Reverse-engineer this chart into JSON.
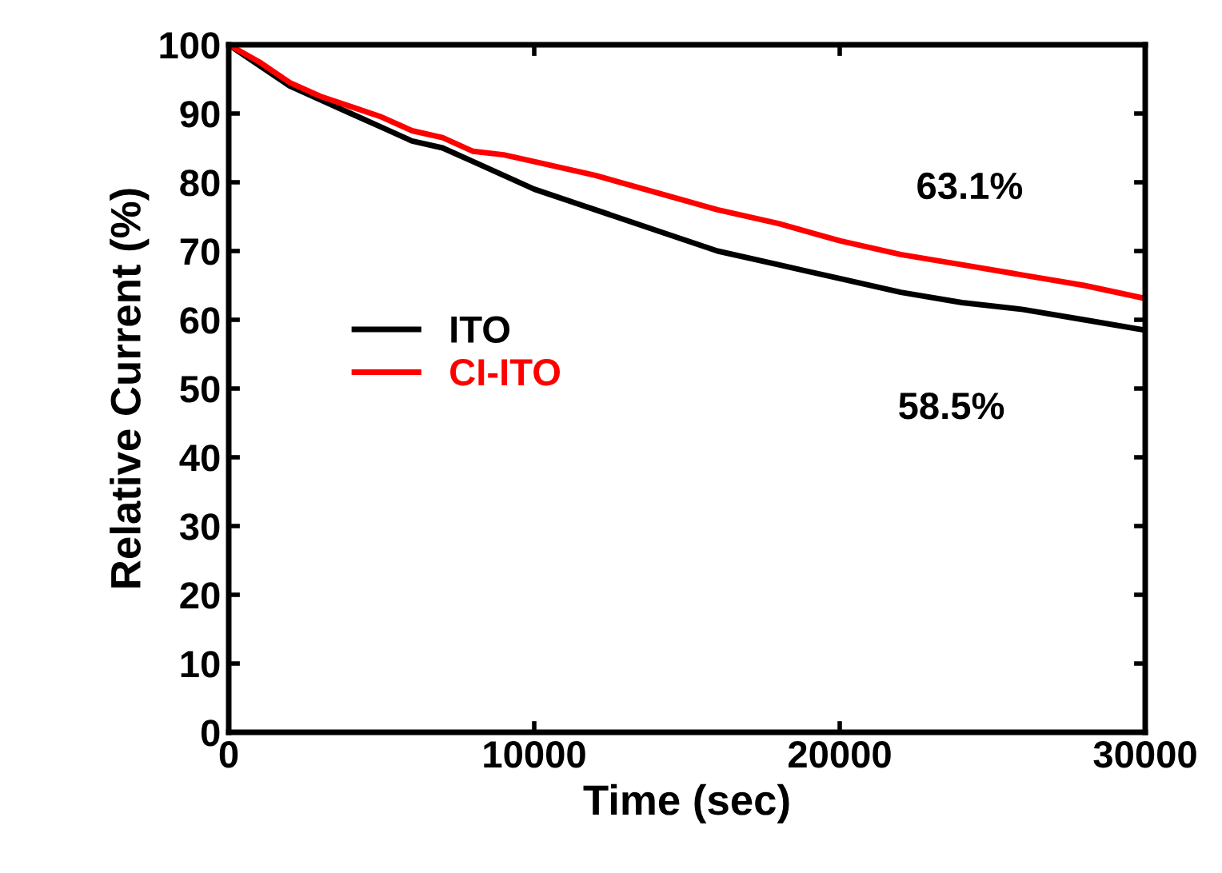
{
  "chart_data": {
    "type": "line",
    "xlabel": "Time (sec)",
    "ylabel": "Relative Current (%)",
    "xlim": [
      0,
      30000
    ],
    "ylim": [
      0,
      100
    ],
    "xticks": [
      0,
      10000,
      20000,
      30000
    ],
    "yticks": [
      0,
      10,
      20,
      30,
      40,
      50,
      60,
      70,
      80,
      90,
      100
    ],
    "grid": false,
    "legend": "left",
    "marker": "none",
    "line_style": "solid",
    "annotations": [
      "63.1%",
      "58.5%"
    ],
    "series": [
      {
        "name": "ITO",
        "color": "#000000",
        "x": [
          0,
          1000,
          2000,
          3000,
          4000,
          5000,
          6000,
          7000,
          8000,
          9000,
          10000,
          12000,
          14000,
          16000,
          18000,
          20000,
          22000,
          24000,
          26000,
          28000,
          30000
        ],
        "values": [
          100,
          97,
          94,
          92,
          90,
          88,
          86,
          85,
          83,
          81,
          79,
          76,
          73,
          70,
          68,
          66,
          64,
          62.5,
          61.5,
          60,
          58.5
        ]
      },
      {
        "name": "CI-ITO",
        "color": "#ff0000",
        "x": [
          0,
          1000,
          2000,
          3000,
          4000,
          5000,
          6000,
          7000,
          8000,
          9000,
          10000,
          12000,
          14000,
          16000,
          18000,
          20000,
          22000,
          24000,
          26000,
          28000,
          30000
        ],
        "values": [
          100,
          97.5,
          94.5,
          92.5,
          91,
          89.5,
          87.5,
          86.5,
          84.5,
          84,
          83,
          81,
          78.5,
          76,
          74,
          71.5,
          69.5,
          68,
          66.5,
          65,
          63.1
        ]
      }
    ]
  }
}
